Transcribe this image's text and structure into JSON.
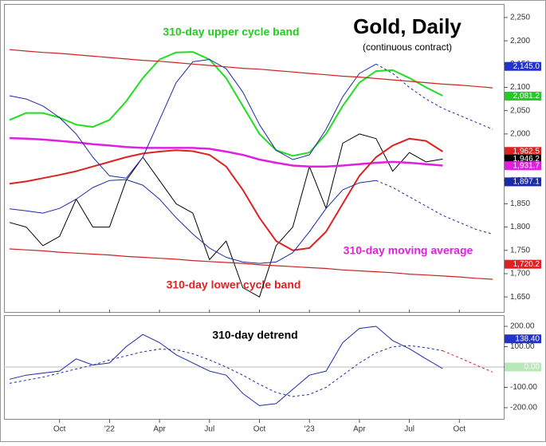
{
  "chart_data": [
    {
      "type": "line",
      "title": "Gold, Daily",
      "subtitle": "(continuous contract)",
      "categories": [
        null,
        null,
        null,
        "Oct",
        null,
        null,
        "'22",
        null,
        null,
        "Apr",
        null,
        null,
        "Jul",
        null,
        null,
        "Oct",
        null,
        null,
        "'23",
        null,
        null,
        "Apr",
        null,
        null,
        "Jul",
        null,
        null,
        "Oct",
        null,
        null
      ],
      "ylim": [
        1616,
        2279
      ],
      "yticks": [
        {
          "value": 2250,
          "label": "2,250"
        },
        {
          "value": 2200,
          "label": "2,200"
        },
        {
          "value": 2150,
          "label": "2,150"
        },
        {
          "value": 2100,
          "label": "2,100"
        },
        {
          "value": 2050,
          "label": "2,050"
        },
        {
          "value": 2000,
          "label": "2,000"
        },
        {
          "value": 1950,
          "label": "1,950"
        },
        {
          "value": 1900,
          "label": "1,900"
        },
        {
          "value": 1850,
          "label": "1,850"
        },
        {
          "value": 1800,
          "label": "1,800"
        },
        {
          "value": 1750,
          "label": "1,750"
        },
        {
          "value": 1700,
          "label": "1,700"
        },
        {
          "value": 1650,
          "label": "1,650"
        }
      ],
      "series": [
        {
          "color": "#000000",
          "width": 1,
          "values": [
            1810,
            1800,
            1760,
            1780,
            1860,
            1800,
            1800,
            1900,
            1950,
            1900,
            1850,
            1830,
            1730,
            1770,
            1670,
            1650,
            1760,
            1800,
            1930,
            1840,
            1980,
            2000,
            1990,
            1920,
            1960,
            1940,
            1946,
            null,
            null,
            null
          ]
        },
        {
          "name": "310-day moving average",
          "color": "#e020e0",
          "width": 2.5,
          "values": [
            1991,
            1990,
            1988,
            1985,
            1982,
            1978,
            1975,
            1972,
            1970,
            1970,
            1970,
            1970,
            1968,
            1962,
            1955,
            1945,
            1938,
            1932,
            1930,
            1930,
            1932,
            1935,
            1938,
            1940,
            1938,
            1935,
            1932,
            null,
            null,
            null
          ]
        },
        {
          "name": "310-day upper cycle band",
          "color": "#22dd22",
          "width": 2,
          "values": [
            2030,
            2045,
            2045,
            2035,
            2020,
            2015,
            2030,
            2070,
            2120,
            2160,
            2175,
            2176,
            2160,
            2120,
            2060,
            2000,
            1965,
            1953,
            1960,
            2000,
            2060,
            2110,
            2135,
            2137,
            2120,
            2100,
            2082,
            null,
            null,
            null
          ]
        },
        {
          "name": "310-day lower cycle band",
          "color": "#dd2222",
          "width": 2,
          "values": [
            1893,
            1898,
            1905,
            1912,
            1920,
            1930,
            1940,
            1950,
            1958,
            1962,
            1965,
            1963,
            1955,
            1930,
            1880,
            1820,
            1770,
            1750,
            1755,
            1790,
            1850,
            1910,
            1950,
            1975,
            1990,
            1985,
            1962,
            null,
            null,
            null
          ]
        },
        {
          "color": "#1a2aa8",
          "width": 1,
          "values": [
            2082,
            2075,
            2060,
            2035,
            2000,
            1950,
            1910,
            1905,
            1950,
            2030,
            2110,
            2155,
            2160,
            2140,
            2090,
            2020,
            1965,
            1945,
            1955,
            2010,
            2080,
            2130,
            2150,
            null,
            null,
            null,
            null,
            null,
            null,
            null
          ]
        },
        {
          "color": "#1a2aa8",
          "width": 1,
          "dashed": true,
          "values": [
            null,
            null,
            null,
            null,
            null,
            null,
            null,
            null,
            null,
            null,
            null,
            null,
            null,
            null,
            null,
            null,
            null,
            null,
            null,
            null,
            null,
            null,
            2150,
            2130,
            2100,
            2075,
            2055,
            2040,
            2025,
            2010
          ]
        },
        {
          "color": "#1a2aa8",
          "width": 1,
          "values": [
            1839,
            1835,
            1830,
            1840,
            1860,
            1885,
            1900,
            1902,
            1890,
            1860,
            1820,
            1785,
            1755,
            1735,
            1725,
            1722,
            1725,
            1745,
            1790,
            1840,
            1880,
            1895,
            1900,
            null,
            null,
            null,
            null,
            null,
            null,
            null
          ]
        },
        {
          "color": "#1a2aa8",
          "width": 1,
          "dashed": true,
          "values": [
            null,
            null,
            null,
            null,
            null,
            null,
            null,
            null,
            null,
            null,
            null,
            null,
            null,
            null,
            null,
            null,
            null,
            null,
            null,
            null,
            null,
            null,
            1900,
            1885,
            1865,
            1845,
            1825,
            1810,
            1795,
            1785
          ]
        },
        {
          "color": "#cc2222",
          "width": 1.2,
          "values": [
            2181,
            2178,
            2175,
            2173,
            2170,
            2167,
            2164,
            2161,
            2158,
            2156,
            2153,
            2150,
            2147,
            2144,
            2141,
            2139,
            2136,
            2133,
            2130,
            2127,
            2124,
            2122,
            2119,
            2116,
            2113,
            2110,
            2107,
            2105,
            2102,
            2099
          ]
        },
        {
          "color": "#cc2222",
          "width": 1.2,
          "values": [
            1753,
            1751,
            1749,
            1746,
            1744,
            1742,
            1740,
            1737,
            1735,
            1733,
            1731,
            1728,
            1726,
            1724,
            1722,
            1719,
            1717,
            1715,
            1713,
            1711,
            1708,
            1706,
            1704,
            1702,
            1699,
            1697,
            1695,
            1693,
            1690,
            1688
          ]
        }
      ],
      "price_labels": [
        {
          "value": 2145.0,
          "label": "2,145.0",
          "color": "#2233cc"
        },
        {
          "value": 2081.2,
          "label": "2,081.2",
          "color": "#22cc22"
        },
        {
          "value": 1962.5,
          "label": "1,962.5",
          "color": "#dd2222"
        },
        {
          "value": 1946.2,
          "label": "1,946.2",
          "color": "#000000"
        },
        {
          "value": 1931.7,
          "label": "1,931.7",
          "color": "#e020e0"
        },
        {
          "value": 1897.1,
          "label": "1,897.1",
          "color": "#1a2aa8"
        },
        {
          "value": 1720.2,
          "label": "1,720.2",
          "color": "#dd2222"
        }
      ]
    },
    {
      "type": "line",
      "title": "310-day detrend",
      "ylim": [
        -255,
        255
      ],
      "yticks": [
        {
          "value": 200,
          "label": "200.00"
        },
        {
          "value": 100,
          "label": "100.00"
        },
        {
          "value": 0,
          "label": "0.00"
        },
        {
          "value": -100,
          "label": "-100.00"
        },
        {
          "value": -200,
          "label": "-200.00"
        }
      ],
      "series": [
        {
          "color": "#1a2aa8",
          "width": 1,
          "values": [
            -60,
            -40,
            -30,
            -20,
            40,
            10,
            20,
            100,
            160,
            120,
            60,
            20,
            -20,
            -40,
            -130,
            -190,
            -180,
            -110,
            -40,
            -20,
            120,
            190,
            200,
            130,
            90,
            40,
            -8,
            null,
            null,
            null
          ]
        },
        {
          "color": "#1a2aa8",
          "width": 1,
          "dashed": true,
          "values": [
            -80,
            -65,
            -50,
            -30,
            -10,
            10,
            35,
            55,
            75,
            88,
            85,
            65,
            35,
            0,
            -40,
            -85,
            -125,
            -145,
            -135,
            -100,
            -40,
            20,
            70,
            100,
            105,
            95,
            80,
            null,
            null,
            null
          ]
        },
        {
          "color": "#dd2222",
          "width": 1,
          "dashed": true,
          "values": [
            null,
            null,
            null,
            null,
            null,
            null,
            null,
            null,
            null,
            null,
            null,
            null,
            null,
            null,
            null,
            null,
            null,
            null,
            null,
            null,
            null,
            null,
            null,
            null,
            null,
            null,
            80,
            45,
            10,
            -25
          ]
        }
      ],
      "price_labels": [
        {
          "value": 138.4,
          "label": "138.40",
          "color": "#2233cc"
        },
        {
          "value": 0.0,
          "label": "0.00",
          "color": "#b8e8b8"
        }
      ]
    }
  ]
}
